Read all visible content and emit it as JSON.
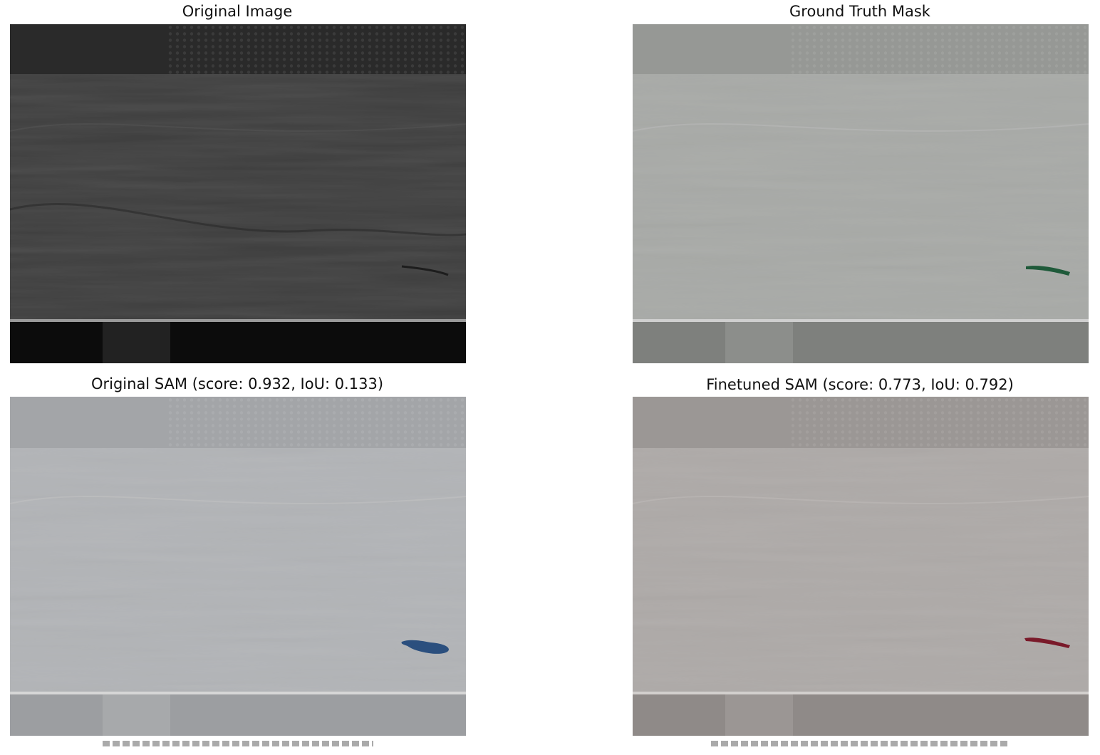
{
  "figure": {
    "panels": [
      {
        "id": "original",
        "title": "Original Image",
        "tint": "none",
        "mask": null
      },
      {
        "id": "ground-truth",
        "title": "Ground Truth Mask",
        "tint": "light-gray",
        "mask": {
          "color": "#1f5a3a",
          "shape": "thin-streak"
        }
      },
      {
        "id": "original-sam",
        "title": "Original SAM (score: 0.932, IoU: 0.133)",
        "tint": "light-blue-gray",
        "mask": {
          "color": "#2b4f7e",
          "shape": "blob"
        }
      },
      {
        "id": "finetuned-sam",
        "title": "Finetuned SAM (score: 0.773, IoU: 0.792)",
        "tint": "light-warm-gray",
        "mask": {
          "color": "#7a1a2a",
          "shape": "thin-streak"
        }
      }
    ]
  }
}
